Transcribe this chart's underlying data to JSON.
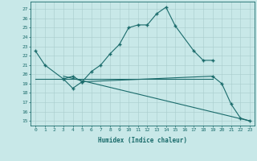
{
  "xlabel": "Humidex (Indice chaleur)",
  "bg_color": "#c8e8e8",
  "line_color": "#1a6b6b",
  "grid_color": "#a8cccc",
  "yticks": [
    15,
    16,
    17,
    18,
    19,
    20,
    21,
    22,
    23,
    24,
    25,
    26,
    27
  ],
  "xticks": [
    0,
    1,
    2,
    3,
    4,
    5,
    6,
    7,
    8,
    9,
    10,
    11,
    12,
    13,
    14,
    15,
    16,
    17,
    18,
    19,
    20,
    21,
    22,
    23
  ],
  "xlim": [
    -0.5,
    23.5
  ],
  "ylim": [
    14.5,
    27.8
  ],
  "line0_x": [
    0,
    1,
    3,
    4,
    5,
    6,
    7,
    8,
    9,
    10,
    11,
    12,
    13,
    14,
    15,
    17,
    18,
    19
  ],
  "line0_y": [
    22.5,
    21.0,
    19.5,
    18.5,
    19.2,
    20.3,
    21.0,
    22.2,
    23.2,
    25.0,
    25.3,
    25.3,
    26.5,
    27.2,
    25.2,
    22.5,
    21.5,
    21.5
  ],
  "line1_x": [
    3,
    4,
    5,
    19,
    20,
    21,
    22,
    23
  ],
  "line1_y": [
    19.5,
    19.8,
    19.2,
    19.8,
    19.0,
    16.8,
    15.3,
    15.0
  ],
  "line2_x": [
    0,
    19
  ],
  "line2_y": [
    19.5,
    19.5
  ],
  "line3_x": [
    3,
    23
  ],
  "line3_y": [
    19.8,
    15.0
  ]
}
